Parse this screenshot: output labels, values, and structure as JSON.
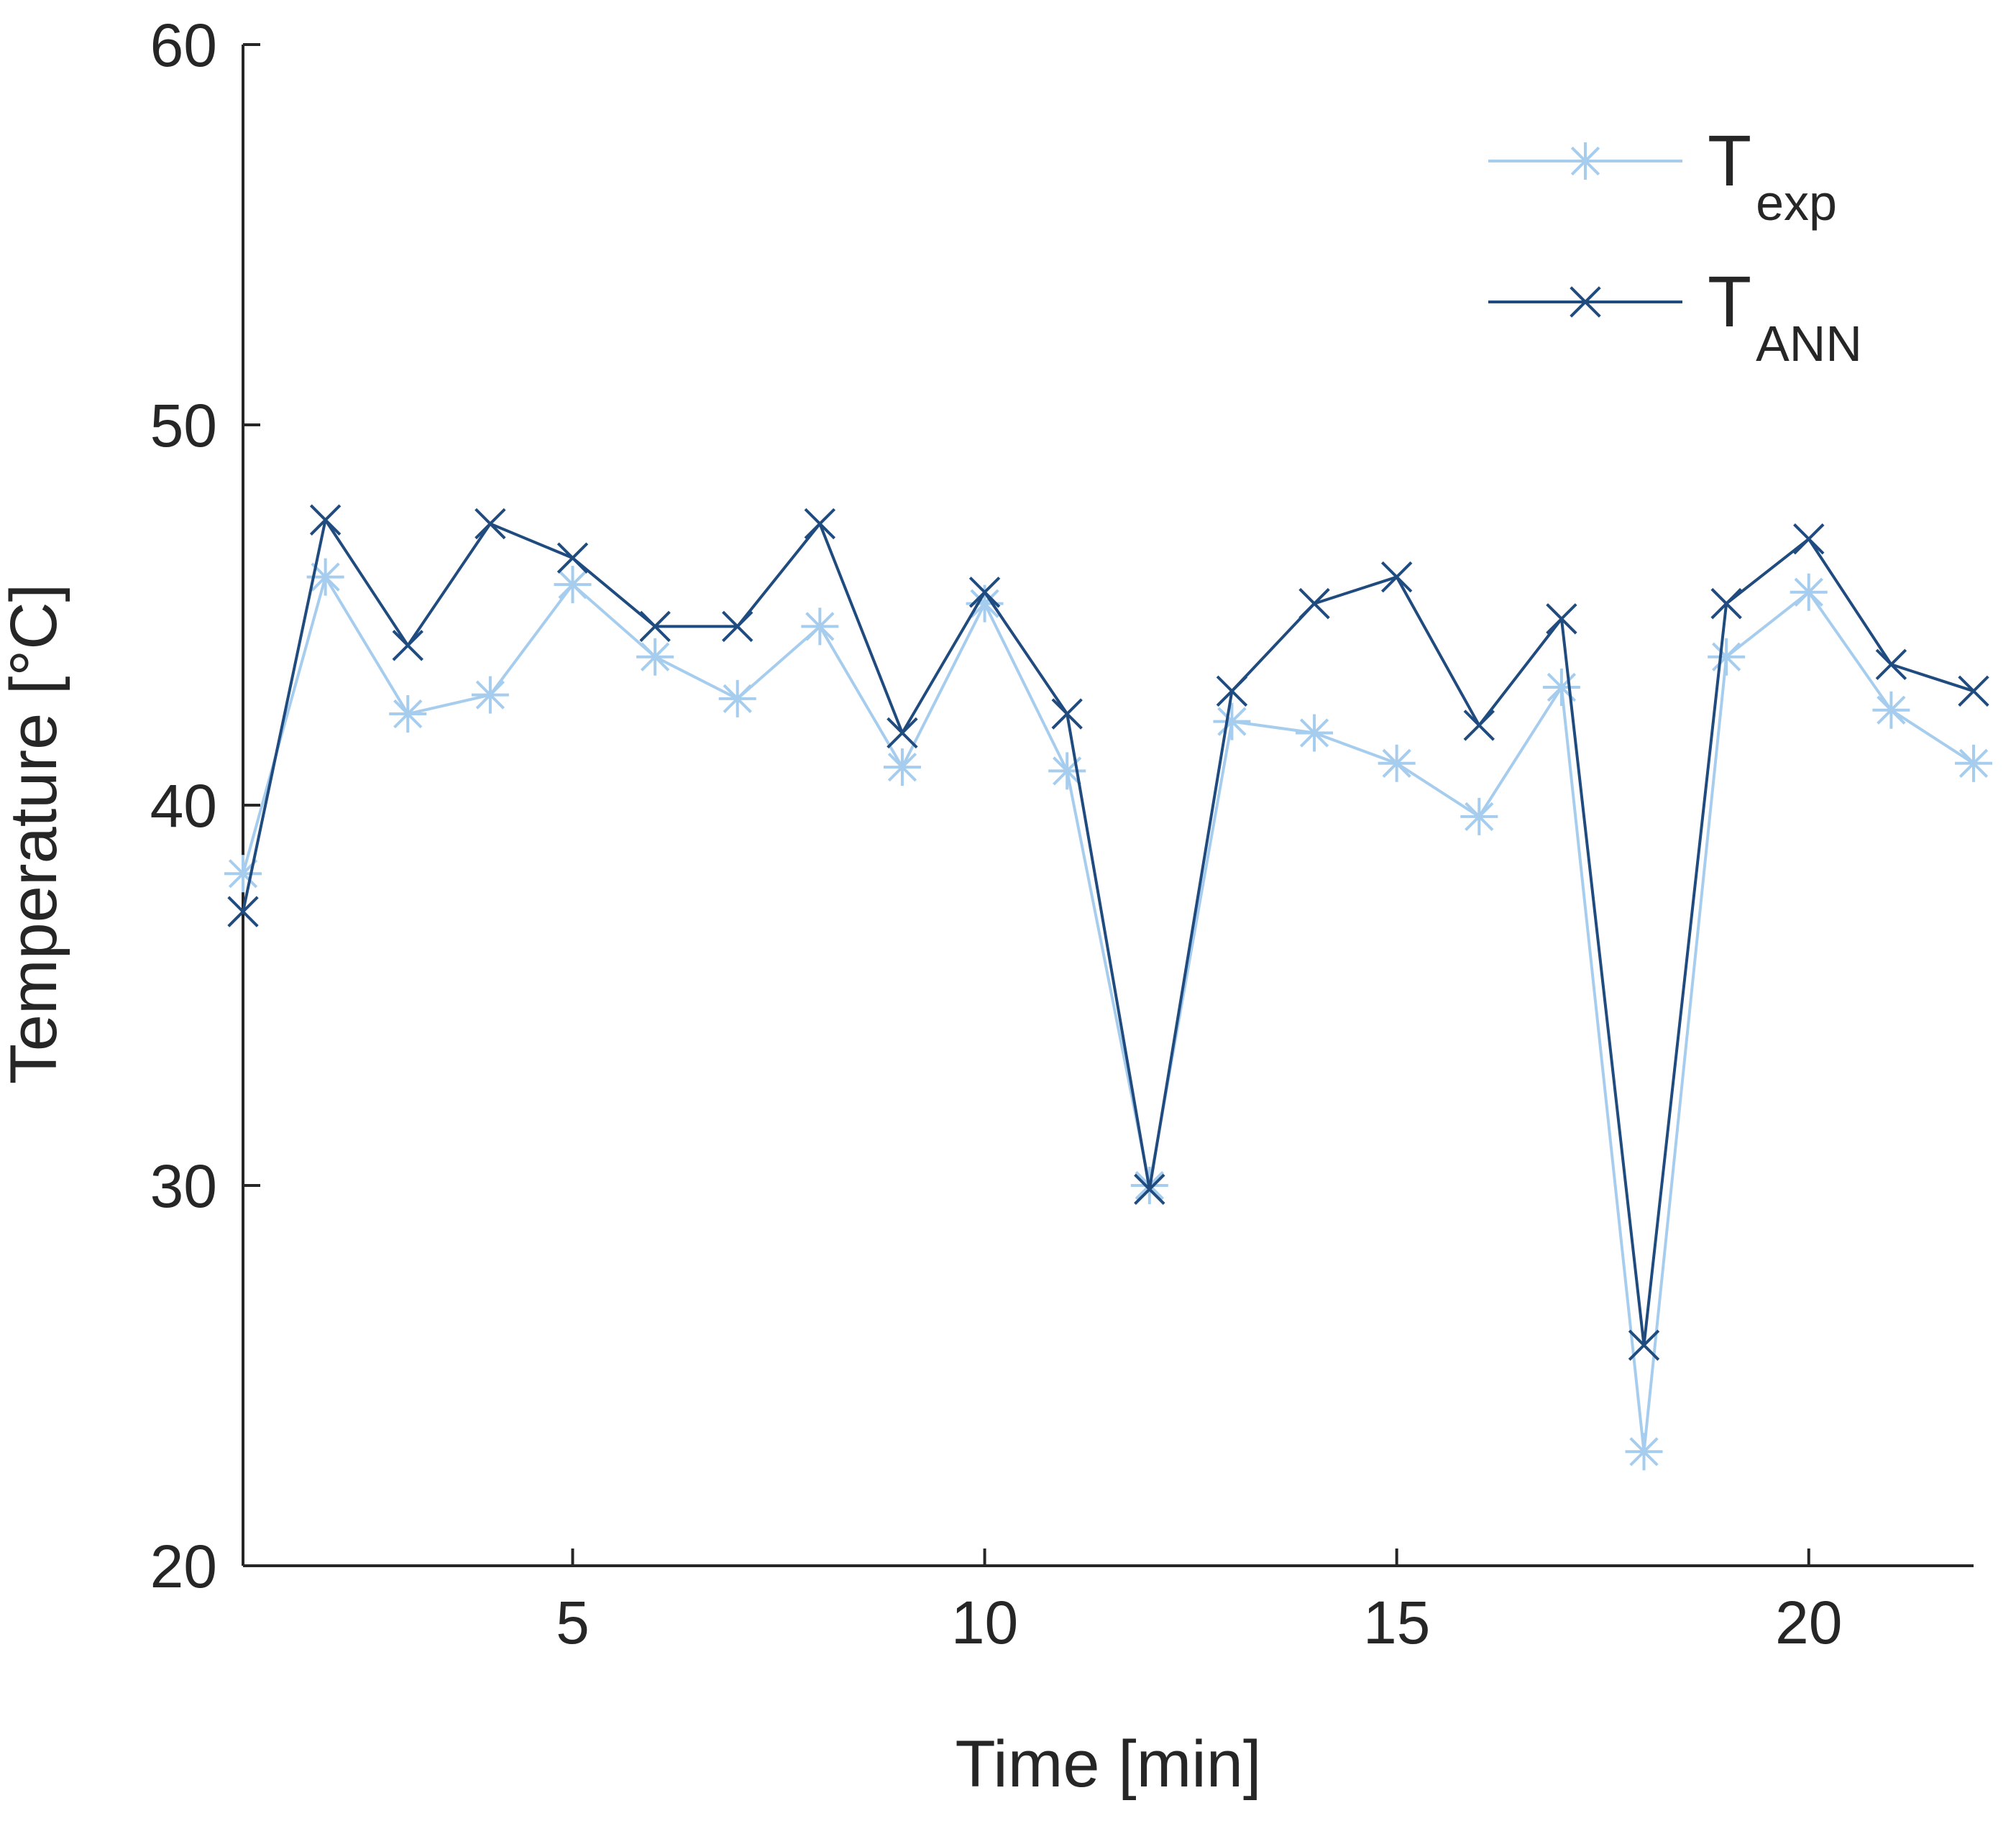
{
  "chart_data": {
    "type": "line",
    "title": "",
    "xlabel": "Time [min]",
    "ylabel": "Temperature [°C]",
    "xlim": [
      1,
      22
    ],
    "ylim": [
      20,
      60
    ],
    "xticks": [
      5,
      10,
      15,
      20
    ],
    "xtick_labels": [
      "5",
      "10",
      "15",
      "20"
    ],
    "yticks": [
      20,
      30,
      40,
      50,
      60
    ],
    "ytick_labels": [
      "20",
      "30",
      "40",
      "50",
      "60"
    ],
    "grid": false,
    "legend_position": "top-right",
    "x": [
      1,
      2,
      3,
      4,
      5,
      6,
      7,
      8,
      9,
      10,
      11,
      12,
      13,
      14,
      15,
      16,
      17,
      18,
      19,
      20,
      21,
      22
    ],
    "series": [
      {
        "name": "T_exp",
        "legend_main": "T",
        "legend_sub": "exp",
        "marker": "asterisk",
        "color": "#a6cdee",
        "values": [
          38.2,
          46.0,
          42.4,
          42.9,
          45.8,
          43.9,
          42.8,
          44.7,
          41.0,
          45.3,
          40.9,
          30.0,
          42.2,
          41.9,
          41.1,
          39.7,
          43.1,
          23.0,
          43.9,
          45.6,
          42.5,
          41.1
        ]
      },
      {
        "name": "T_ANN",
        "legend_main": "T",
        "legend_sub": "ANN",
        "marker": "x",
        "color": "#1f4b7f",
        "values": [
          37.2,
          47.5,
          44.2,
          47.4,
          46.5,
          44.7,
          44.7,
          47.4,
          41.9,
          45.6,
          42.4,
          29.9,
          43.0,
          45.3,
          46.0,
          42.1,
          44.9,
          25.8,
          45.3,
          47.0,
          43.7,
          43.0
        ]
      }
    ]
  }
}
